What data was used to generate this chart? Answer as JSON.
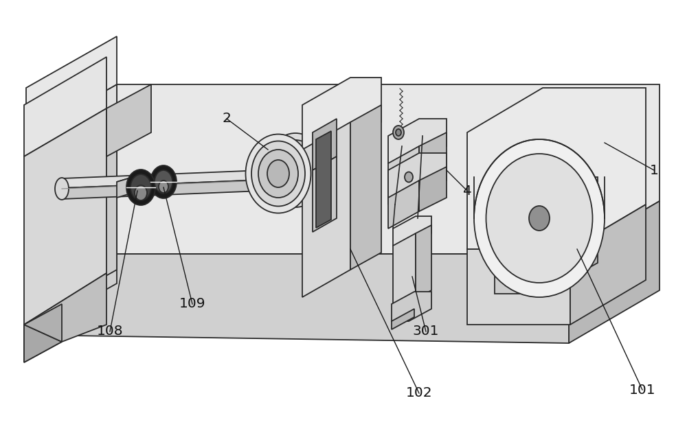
{
  "background_color": "#ffffff",
  "fig_width": 10.0,
  "fig_height": 6.28,
  "line_color": "#2a2a2a",
  "face_top": "#e8e8e8",
  "face_front": "#cccccc",
  "face_right": "#b8b8b8",
  "face_dark": "#a0a0a0",
  "face_white": "#f0f0f0",
  "face_medium": "#d4d4d4"
}
